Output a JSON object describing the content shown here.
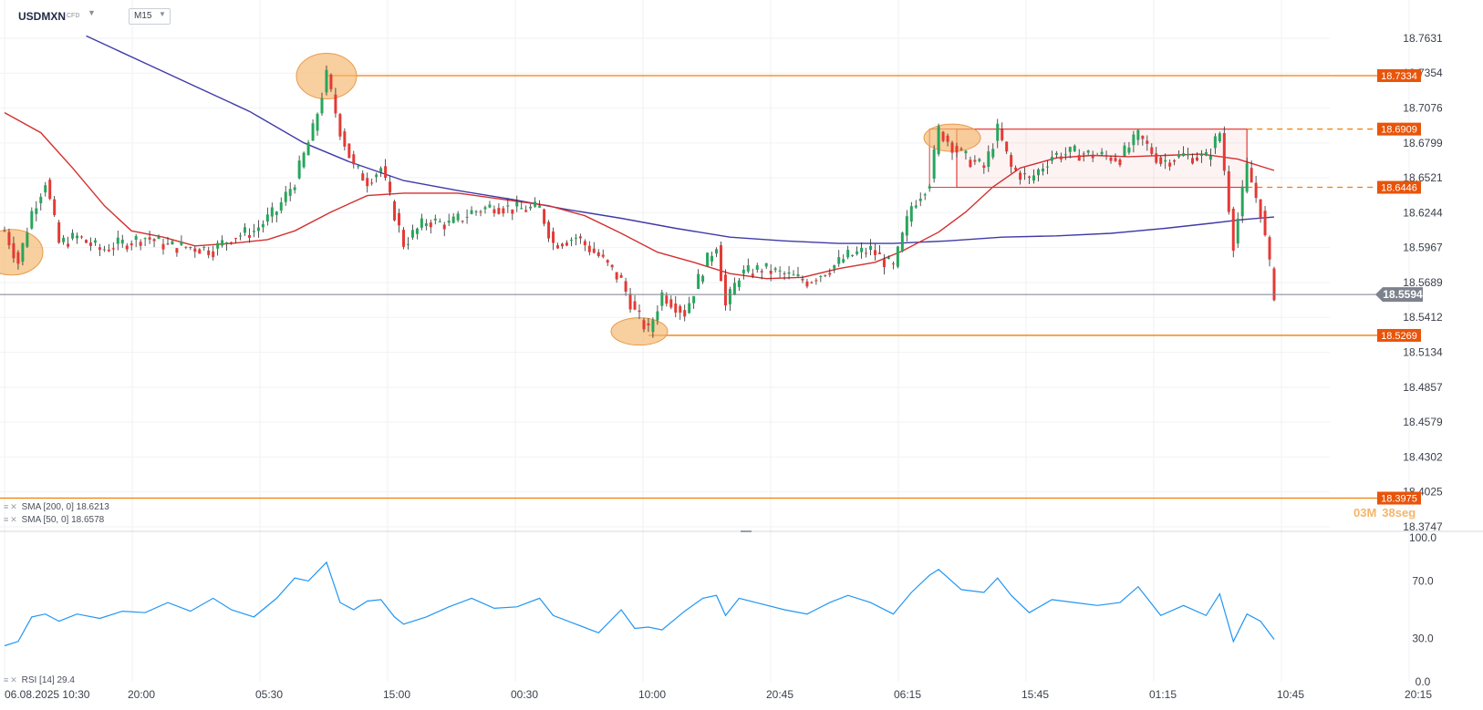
{
  "header": {
    "symbol": "USDMXN",
    "instrument_type": "CFD",
    "timeframe": "M15"
  },
  "price_axis": {
    "ticks": [
      "18.7631",
      "18.7354",
      "18.7076",
      "18.6799",
      "18.6521",
      "18.6244",
      "18.5967",
      "18.5689",
      "18.5412",
      "18.5134",
      "18.4857",
      "18.4579",
      "18.4302",
      "18.4025",
      "18.3747"
    ]
  },
  "rsi_axis": {
    "ticks": [
      "100.0",
      "70.0",
      "30.0",
      "0.0"
    ]
  },
  "time_axis": {
    "labels": [
      "06.08.2025 10:30",
      "20:00",
      "05:30",
      "15:00",
      "00:30",
      "10:00",
      "20:45",
      "06:15",
      "15:45",
      "01:15",
      "10:45",
      "20:15"
    ]
  },
  "indicators": {
    "sma200": "SMA [200, 0] 18.6213",
    "sma50": "SMA [50, 0] 18.6578",
    "rsi": "RSI [14] 29.4"
  },
  "countdown": {
    "minutes": "03M",
    "seconds": "38seg"
  },
  "colors": {
    "up": "#26a65b",
    "down": "#e53935",
    "sma50": "#d32f2f",
    "sma200": "#3f3aa8",
    "level": "#f57c00",
    "highlight": "#f5b56a",
    "rsi": "#2196f3",
    "current": "#7a7f88"
  },
  "chart_data": [
    {
      "type": "candlestick",
      "title": "USDMXN",
      "ylim": [
        18.3747,
        18.7631
      ],
      "current_price": "18.5594",
      "levels": [
        {
          "label": "18.7334",
          "value": 18.7334,
          "style": "solid"
        },
        {
          "label": "18.6909",
          "value": 18.6909,
          "style": "dashed"
        },
        {
          "label": "18.6446",
          "value": 18.6446,
          "style": "dashed"
        },
        {
          "label": "18.5269",
          "value": 18.5269,
          "style": "solid"
        },
        {
          "label": "18.3975",
          "value": 18.3975,
          "style": "solid"
        }
      ],
      "consolidation_range": {
        "high": 18.6909,
        "low": 18.6446
      },
      "price_path": [
        [
          0,
          18.61
        ],
        [
          3,
          18.585
        ],
        [
          6,
          18.625
        ],
        [
          9,
          18.65
        ],
        [
          12,
          18.6
        ],
        [
          16,
          18.605
        ],
        [
          21,
          18.595
        ],
        [
          26,
          18.6
        ],
        [
          31,
          18.605
        ],
        [
          36,
          18.598
        ],
        [
          41,
          18.597
        ],
        [
          46,
          18.595
        ],
        [
          50,
          18.605
        ],
        [
          55,
          18.61
        ],
        [
          60,
          18.626
        ],
        [
          64,
          18.65
        ],
        [
          68,
          18.69
        ],
        [
          71,
          18.733
        ],
        [
          74,
          18.69
        ],
        [
          77,
          18.66
        ],
        [
          80,
          18.65
        ],
        [
          83,
          18.66
        ],
        [
          85,
          18.635
        ],
        [
          88,
          18.6
        ],
        [
          93,
          18.618
        ],
        [
          98,
          18.615
        ],
        [
          103,
          18.625
        ],
        [
          108,
          18.63
        ],
        [
          113,
          18.627
        ],
        [
          118,
          18.628
        ],
        [
          121,
          18.6
        ],
        [
          126,
          18.605
        ],
        [
          131,
          18.59
        ],
        [
          136,
          18.57
        ],
        [
          139,
          18.545
        ],
        [
          142,
          18.53
        ],
        [
          145,
          18.56
        ],
        [
          150,
          18.545
        ],
        [
          154,
          18.58
        ],
        [
          157,
          18.6
        ],
        [
          159,
          18.55
        ],
        [
          162,
          18.575
        ],
        [
          167,
          18.58
        ],
        [
          172,
          18.575
        ],
        [
          177,
          18.57
        ],
        [
          182,
          18.58
        ],
        [
          186,
          18.59
        ],
        [
          191,
          18.595
        ],
        [
          196,
          18.58
        ],
        [
          200,
          18.63
        ],
        [
          204,
          18.65
        ],
        [
          206,
          18.69
        ],
        [
          211,
          18.67
        ],
        [
          216,
          18.66
        ],
        [
          219,
          18.69
        ],
        [
          222,
          18.66
        ],
        [
          226,
          18.65
        ],
        [
          231,
          18.67
        ],
        [
          236,
          18.672
        ],
        [
          241,
          18.67
        ],
        [
          246,
          18.668
        ],
        [
          250,
          18.685
        ],
        [
          255,
          18.665
        ],
        [
          260,
          18.67
        ],
        [
          265,
          18.668
        ],
        [
          268,
          18.688
        ],
        [
          271,
          18.6
        ],
        [
          274,
          18.66
        ],
        [
          277,
          18.625
        ],
        [
          280,
          18.56
        ]
      ],
      "sma50": [
        [
          0,
          18.704
        ],
        [
          8,
          18.688
        ],
        [
          15,
          18.66
        ],
        [
          22,
          18.63
        ],
        [
          28,
          18.61
        ],
        [
          35,
          18.605
        ],
        [
          42,
          18.598
        ],
        [
          50,
          18.6
        ],
        [
          58,
          18.603
        ],
        [
          64,
          18.61
        ],
        [
          72,
          18.625
        ],
        [
          80,
          18.638
        ],
        [
          88,
          18.64
        ],
        [
          100,
          18.64
        ],
        [
          110,
          18.635
        ],
        [
          120,
          18.63
        ],
        [
          128,
          18.622
        ],
        [
          136,
          18.608
        ],
        [
          144,
          18.593
        ],
        [
          152,
          18.585
        ],
        [
          160,
          18.576
        ],
        [
          168,
          18.572
        ],
        [
          176,
          18.573
        ],
        [
          184,
          18.58
        ],
        [
          192,
          18.585
        ],
        [
          198,
          18.594
        ],
        [
          206,
          18.609
        ],
        [
          212,
          18.625
        ],
        [
          218,
          18.645
        ],
        [
          224,
          18.66
        ],
        [
          232,
          18.668
        ],
        [
          240,
          18.67
        ],
        [
          248,
          18.669
        ],
        [
          256,
          18.67
        ],
        [
          264,
          18.671
        ],
        [
          272,
          18.667
        ],
        [
          280,
          18.658
        ]
      ],
      "sma200": [
        [
          18,
          18.765
        ],
        [
          30,
          18.745
        ],
        [
          42,
          18.725
        ],
        [
          54,
          18.705
        ],
        [
          66,
          18.68
        ],
        [
          76,
          18.665
        ],
        [
          88,
          18.65
        ],
        [
          100,
          18.642
        ],
        [
          112,
          18.635
        ],
        [
          124,
          18.627
        ],
        [
          136,
          18.62
        ],
        [
          148,
          18.612
        ],
        [
          160,
          18.605
        ],
        [
          172,
          18.602
        ],
        [
          184,
          18.6
        ],
        [
          196,
          18.6
        ],
        [
          208,
          18.602
        ],
        [
          220,
          18.605
        ],
        [
          232,
          18.606
        ],
        [
          244,
          18.608
        ],
        [
          256,
          18.612
        ],
        [
          266,
          18.616
        ],
        [
          273,
          18.619
        ],
        [
          280,
          18.621
        ]
      ]
    },
    {
      "type": "line",
      "title": "RSI [14]",
      "ylim": [
        0,
        100
      ],
      "values": [
        [
          0,
          25
        ],
        [
          3,
          28
        ],
        [
          6,
          45
        ],
        [
          9,
          47
        ],
        [
          12,
          42
        ],
        [
          16,
          47
        ],
        [
          21,
          44
        ],
        [
          26,
          49
        ],
        [
          31,
          48
        ],
        [
          36,
          55
        ],
        [
          41,
          49
        ],
        [
          46,
          58
        ],
        [
          50,
          50
        ],
        [
          55,
          45
        ],
        [
          60,
          58
        ],
        [
          64,
          72
        ],
        [
          67,
          70
        ],
        [
          71,
          83
        ],
        [
          74,
          55
        ],
        [
          77,
          50
        ],
        [
          80,
          56
        ],
        [
          83,
          57
        ],
        [
          86,
          45
        ],
        [
          88,
          40
        ],
        [
          93,
          45
        ],
        [
          98,
          52
        ],
        [
          103,
          58
        ],
        [
          108,
          51
        ],
        [
          113,
          52
        ],
        [
          118,
          58
        ],
        [
          121,
          46
        ],
        [
          126,
          40
        ],
        [
          131,
          34
        ],
        [
          136,
          50
        ],
        [
          139,
          37
        ],
        [
          142,
          38
        ],
        [
          145,
          36
        ],
        [
          150,
          49
        ],
        [
          154,
          58
        ],
        [
          157,
          60
        ],
        [
          159,
          46
        ],
        [
          162,
          58
        ],
        [
          167,
          54
        ],
        [
          172,
          50
        ],
        [
          177,
          47
        ],
        [
          182,
          55
        ],
        [
          186,
          60
        ],
        [
          191,
          55
        ],
        [
          196,
          47
        ],
        [
          200,
          62
        ],
        [
          204,
          74
        ],
        [
          206,
          78
        ],
        [
          211,
          64
        ],
        [
          216,
          62
        ],
        [
          219,
          72
        ],
        [
          222,
          60
        ],
        [
          226,
          48
        ],
        [
          231,
          57
        ],
        [
          236,
          55
        ],
        [
          241,
          53
        ],
        [
          246,
          55
        ],
        [
          250,
          66
        ],
        [
          255,
          46
        ],
        [
          260,
          53
        ],
        [
          265,
          46
        ],
        [
          268,
          61
        ],
        [
          271,
          28
        ],
        [
          274,
          47
        ],
        [
          277,
          42
        ],
        [
          280,
          29.4
        ]
      ]
    }
  ]
}
